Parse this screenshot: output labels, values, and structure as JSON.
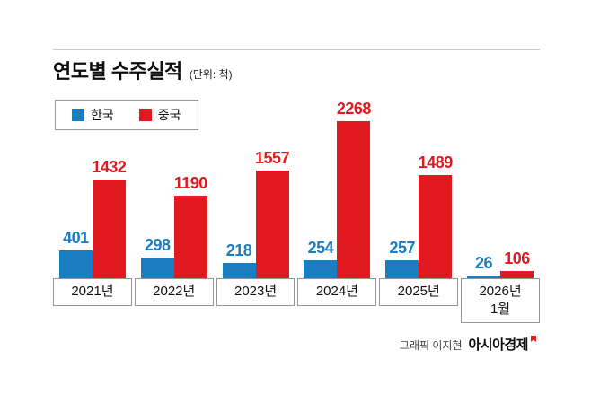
{
  "title": "연도별 수주실적",
  "unit_label": "(단위: 척)",
  "credit": {
    "prefix": "그래픽 이지현",
    "brand": "아시아경제"
  },
  "colors": {
    "korea_blue": "#1a7dc0",
    "china_red": "#e01a20"
  },
  "chart_data": {
    "type": "bar",
    "title": "연도별 수주실적",
    "unit": "척",
    "categories": [
      "2021년",
      "2022년",
      "2023년",
      "2024년",
      "2025년",
      "2026년 1월"
    ],
    "categories_display": [
      [
        "2021년"
      ],
      [
        "2022년"
      ],
      [
        "2023년"
      ],
      [
        "2024년"
      ],
      [
        "2025년"
      ],
      [
        "2026년",
        "1월"
      ]
    ],
    "series": [
      {
        "name": "한국",
        "color": "#1a7dc0",
        "values": [
          401,
          298,
          218,
          254,
          257,
          26
        ]
      },
      {
        "name": "중국",
        "color": "#e01a20",
        "values": [
          1432,
          1190,
          1557,
          2268,
          1489,
          106
        ]
      }
    ],
    "ylim": [
      0,
      2268
    ],
    "grid": false,
    "legend_position": "top-left",
    "value_labels": true
  }
}
